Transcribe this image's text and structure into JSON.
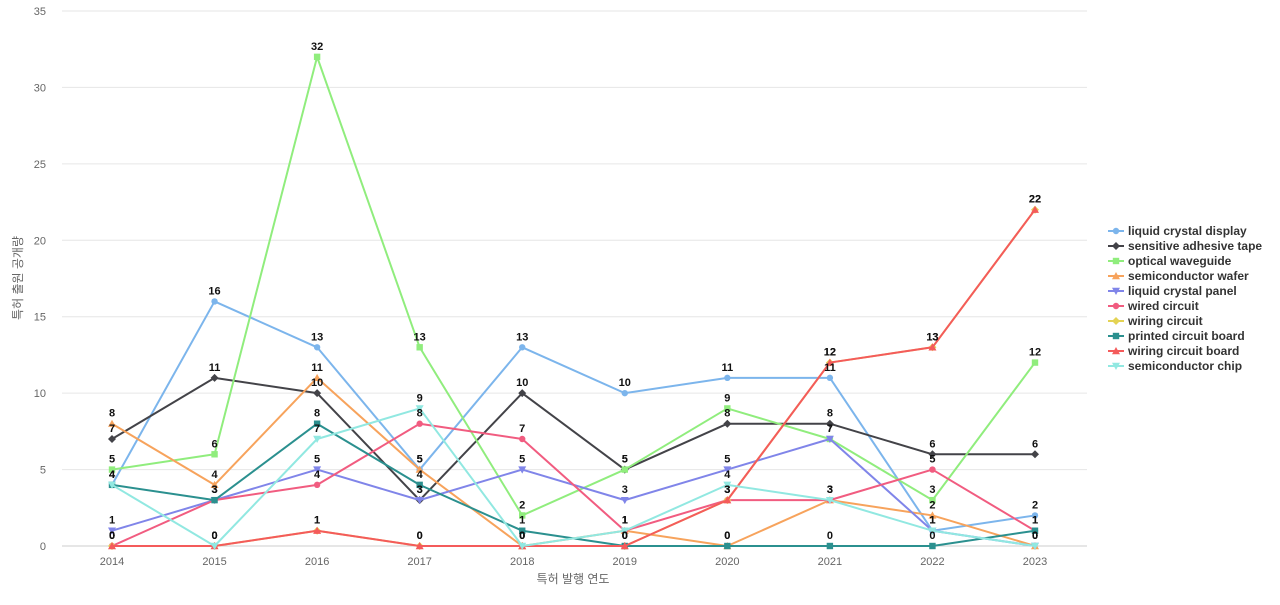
{
  "chart_data": {
    "type": "line",
    "title": "",
    "xlabel": "특허 발행 연도",
    "ylabel": "특허 출원 공개량",
    "x": [
      "2014",
      "2015",
      "2016",
      "2017",
      "2018",
      "2019",
      "2020",
      "2021",
      "2022",
      "2023"
    ],
    "ylim": [
      0,
      35
    ],
    "yticks": [
      0,
      5,
      10,
      15,
      20,
      25,
      30,
      35
    ],
    "grid": "horizontal",
    "legend_position": "right",
    "series": [
      {
        "name": "liquid crystal display",
        "color": "#7cb5ec",
        "marker": "circle",
        "values": [
          4,
          16,
          13,
          5,
          13,
          10,
          11,
          11,
          1,
          2
        ]
      },
      {
        "name": "sensitive adhesive tape",
        "color": "#434348",
        "marker": "diamond",
        "values": [
          7,
          11,
          10,
          3,
          10,
          5,
          8,
          8,
          6,
          6
        ]
      },
      {
        "name": "optical waveguide",
        "color": "#90ed7d",
        "marker": "square",
        "values": [
          5,
          6,
          32,
          13,
          2,
          5,
          9,
          7,
          3,
          12
        ]
      },
      {
        "name": "semiconductor wafer",
        "color": "#f7a35c",
        "marker": "triangle",
        "values": [
          8,
          4,
          11,
          5,
          0,
          1,
          0,
          3,
          2,
          0
        ]
      },
      {
        "name": "liquid crystal panel",
        "color": "#8085e9",
        "marker": "triangle-down",
        "values": [
          1,
          3,
          5,
          3,
          5,
          3,
          5,
          7,
          1,
          0
        ]
      },
      {
        "name": "wired circuit",
        "color": "#f15c80",
        "marker": "circle",
        "values": [
          0,
          3,
          4,
          8,
          7,
          1,
          3,
          3,
          5,
          1
        ]
      },
      {
        "name": "wiring circuit",
        "color": "#e4d354",
        "marker": "diamond",
        "values": [
          0,
          0,
          1,
          0,
          0,
          0,
          3,
          12,
          13,
          22
        ]
      },
      {
        "name": "printed circuit board",
        "color": "#2b908f",
        "marker": "square",
        "values": [
          4,
          3,
          8,
          4,
          1,
          0,
          0,
          0,
          0,
          1
        ]
      },
      {
        "name": "wiring circuit board",
        "color": "#f45b5b",
        "marker": "triangle",
        "values": [
          0,
          0,
          1,
          0,
          0,
          0,
          3,
          12,
          13,
          22
        ]
      },
      {
        "name": "semiconductor chip",
        "color": "#91e8e1",
        "marker": "triangle-down",
        "values": [
          4,
          0,
          7,
          9,
          0,
          1,
          4,
          3,
          1,
          0
        ]
      }
    ]
  }
}
